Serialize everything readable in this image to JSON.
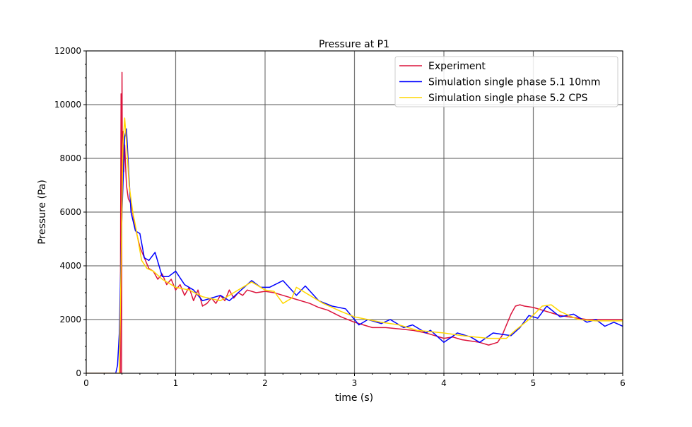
{
  "chart_data": {
    "type": "line",
    "title": "Pressure at P1",
    "xlabel": "time (s)",
    "ylabel": "Pressure (Pa)",
    "xlim": [
      0,
      6
    ],
    "ylim": [
      0,
      12000
    ],
    "xticks": [
      0,
      1,
      2,
      3,
      4,
      5,
      6
    ],
    "xtick_labels": [
      "0",
      "1",
      "2",
      "3",
      "4",
      "5",
      "6"
    ],
    "yticks": [
      0,
      2000,
      4000,
      6000,
      8000,
      10000,
      12000
    ],
    "ytick_labels": [
      "0",
      "2000",
      "4000",
      "6000",
      "8000",
      "10000",
      "12000"
    ],
    "grid": true,
    "legend_position": "top-right",
    "series": [
      {
        "name": "Experiment",
        "color": "#dc143c",
        "x": [
          0,
          0.36,
          0.38,
          0.385,
          0.39,
          0.395,
          0.4,
          0.405,
          0.41,
          0.42,
          0.43,
          0.45,
          0.47,
          0.5,
          0.55,
          0.6,
          0.65,
          0.7,
          0.75,
          0.8,
          0.85,
          0.9,
          0.95,
          1.0,
          1.05,
          1.1,
          1.15,
          1.2,
          1.25,
          1.3,
          1.35,
          1.4,
          1.45,
          1.5,
          1.55,
          1.6,
          1.65,
          1.7,
          1.75,
          1.8,
          1.9,
          2.0,
          2.1,
          2.2,
          2.35,
          2.5,
          2.6,
          2.7,
          2.85,
          3.0,
          3.1,
          3.2,
          3.35,
          3.5,
          3.65,
          3.8,
          3.9,
          4.0,
          4.1,
          4.2,
          4.3,
          4.4,
          4.5,
          4.6,
          4.65,
          4.7,
          4.75,
          4.8,
          4.85,
          4.9,
          5.0,
          5.1,
          5.2,
          5.3,
          5.4,
          5.5,
          5.6,
          5.8,
          6.0
        ],
        "y": [
          0,
          0,
          0,
          6000,
          10400,
          0,
          11200,
          7000,
          9000,
          7500,
          8500,
          7000,
          6500,
          6300,
          5400,
          4700,
          4300,
          3900,
          3800,
          3500,
          3700,
          3300,
          3500,
          3100,
          3300,
          2900,
          3200,
          2700,
          3100,
          2500,
          2600,
          2800,
          2600,
          2900,
          2700,
          3100,
          2800,
          3000,
          2900,
          3100,
          3000,
          3050,
          3000,
          2900,
          2750,
          2600,
          2450,
          2350,
          2100,
          1900,
          1800,
          1700,
          1700,
          1650,
          1600,
          1500,
          1400,
          1300,
          1350,
          1250,
          1200,
          1150,
          1050,
          1150,
          1400,
          1800,
          2200,
          2500,
          2550,
          2500,
          2450,
          2350,
          2250,
          2150,
          2100,
          2050,
          2000,
          2000,
          2000
        ]
      },
      {
        "name": "Simulation single phase 5.1 10mm",
        "color": "#0000ff",
        "x": [
          0,
          0.33,
          0.35,
          0.37,
          0.4,
          0.43,
          0.45,
          0.48,
          0.5,
          0.55,
          0.6,
          0.65,
          0.7,
          0.77,
          0.85,
          0.92,
          1.0,
          1.1,
          1.2,
          1.3,
          1.4,
          1.5,
          1.6,
          1.7,
          1.8,
          1.85,
          1.95,
          2.05,
          2.2,
          2.35,
          2.45,
          2.6,
          2.75,
          2.9,
          3.05,
          3.15,
          3.3,
          3.4,
          3.55,
          3.65,
          3.8,
          3.85,
          4.0,
          4.15,
          4.3,
          4.4,
          4.55,
          4.65,
          4.75,
          4.85,
          4.95,
          5.05,
          5.15,
          5.3,
          5.45,
          5.6,
          5.7,
          5.8,
          5.9,
          6.0
        ],
        "y": [
          0,
          0,
          300,
          1500,
          6000,
          8800,
          9100,
          7200,
          6000,
          5300,
          5200,
          4300,
          4200,
          4500,
          3600,
          3600,
          3800,
          3300,
          3100,
          2700,
          2800,
          2900,
          2700,
          3000,
          3300,
          3450,
          3200,
          3200,
          3450,
          2900,
          3250,
          2700,
          2500,
          2400,
          1800,
          2000,
          1850,
          2000,
          1700,
          1800,
          1500,
          1600,
          1150,
          1500,
          1350,
          1150,
          1500,
          1450,
          1400,
          1700,
          2150,
          2050,
          2500,
          2100,
          2200,
          1900,
          2000,
          1750,
          1900,
          1750
        ]
      },
      {
        "name": "Simulation single phase 5.2 CPS",
        "color": "#ffd700",
        "x": [
          0,
          0.37,
          0.39,
          0.41,
          0.43,
          0.45,
          0.48,
          0.52,
          0.55,
          0.62,
          0.68,
          0.75,
          0.85,
          1.0,
          1.15,
          1.3,
          1.5,
          1.65,
          1.85,
          2.0,
          2.1,
          2.2,
          2.3,
          2.35,
          2.5,
          2.65,
          2.85,
          3.0,
          3.15,
          3.3,
          3.5,
          3.7,
          3.85,
          4.0,
          4.2,
          4.5,
          4.7,
          4.8,
          4.95,
          5.1,
          5.2,
          5.3,
          5.5,
          5.7,
          6.0
        ],
        "y": [
          0,
          0,
          4000,
          8500,
          9500,
          8600,
          7000,
          6000,
          5500,
          4200,
          3900,
          3800,
          3500,
          3200,
          3100,
          2850,
          2700,
          3000,
          3400,
          3100,
          3050,
          2600,
          2800,
          3200,
          2900,
          2600,
          2300,
          2100,
          2000,
          1900,
          1800,
          1600,
          1550,
          1500,
          1400,
          1300,
          1300,
          1600,
          2000,
          2500,
          2550,
          2300,
          2000,
          1950,
          1950
        ]
      }
    ]
  }
}
